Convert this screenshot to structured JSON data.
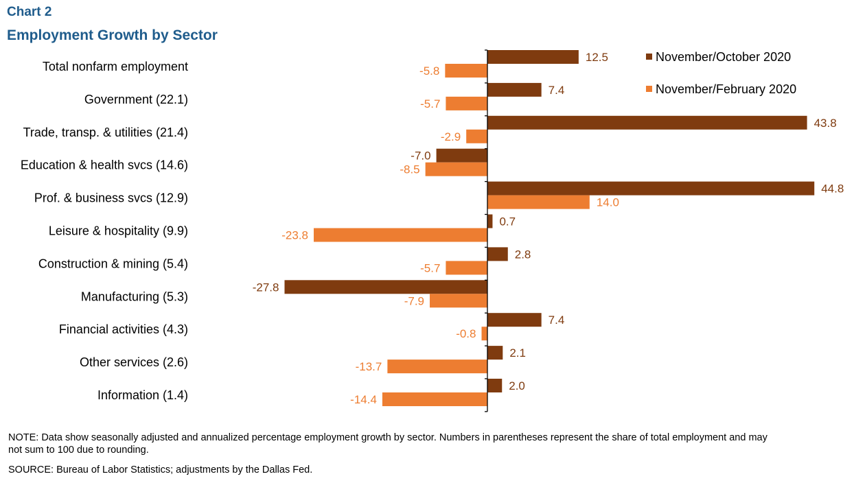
{
  "title": "Chart 2",
  "subtitle": "Employment Growth by Sector",
  "note": "NOTE: Data show seasonally adjusted and annualized percentage employment growth by sector. Numbers in parentheses represent the share of total employment and may not sum to 100 due to rounding.",
  "source": "SOURCE: Bureau of Labor Statistics; adjustments by the Dallas Fed.",
  "colors": {
    "nov_oct": "#7f3b0f",
    "nov_feb": "#ed7d31"
  },
  "chart_data": {
    "type": "bar",
    "orientation": "horizontal",
    "categories": [
      "Total nonfarm employment",
      "Government (22.1)",
      "Trade, transp. & utilities (21.4)",
      "Education & health svcs (14.6)",
      "Prof. & business svcs (12.9)",
      "Leisure & hospitality (9.9)",
      "Construction & mining (5.4)",
      "Manufacturing (5.3)",
      "Financial activities (4.3)",
      "Other services (2.6)",
      "Information (1.4)"
    ],
    "series": [
      {
        "name": "November/October 2020",
        "values": [
          12.5,
          7.4,
          43.8,
          -7.0,
          44.8,
          0.7,
          2.8,
          -27.8,
          7.4,
          2.1,
          2.0
        ],
        "labels": [
          "12.5",
          "7.4",
          "43.8",
          "-7.0",
          "44.8",
          "0.7",
          "2.8",
          "-27.8",
          "7.4",
          "2.1",
          "2.0"
        ]
      },
      {
        "name": "November/February 2020",
        "values": [
          -5.8,
          -5.7,
          -2.9,
          -8.5,
          14.0,
          -23.8,
          -5.7,
          -7.9,
          -0.8,
          -13.7,
          -14.4
        ],
        "labels": [
          "-5.8",
          "-5.7",
          "-2.9",
          "-8.5",
          "14.0",
          "-23.8",
          "-5.7",
          "-7.9",
          "-0.8",
          "-13.7",
          "-14.4"
        ]
      }
    ],
    "legend_position": "top-right",
    "xlim": [
      -44,
      48
    ],
    "grid": false
  }
}
